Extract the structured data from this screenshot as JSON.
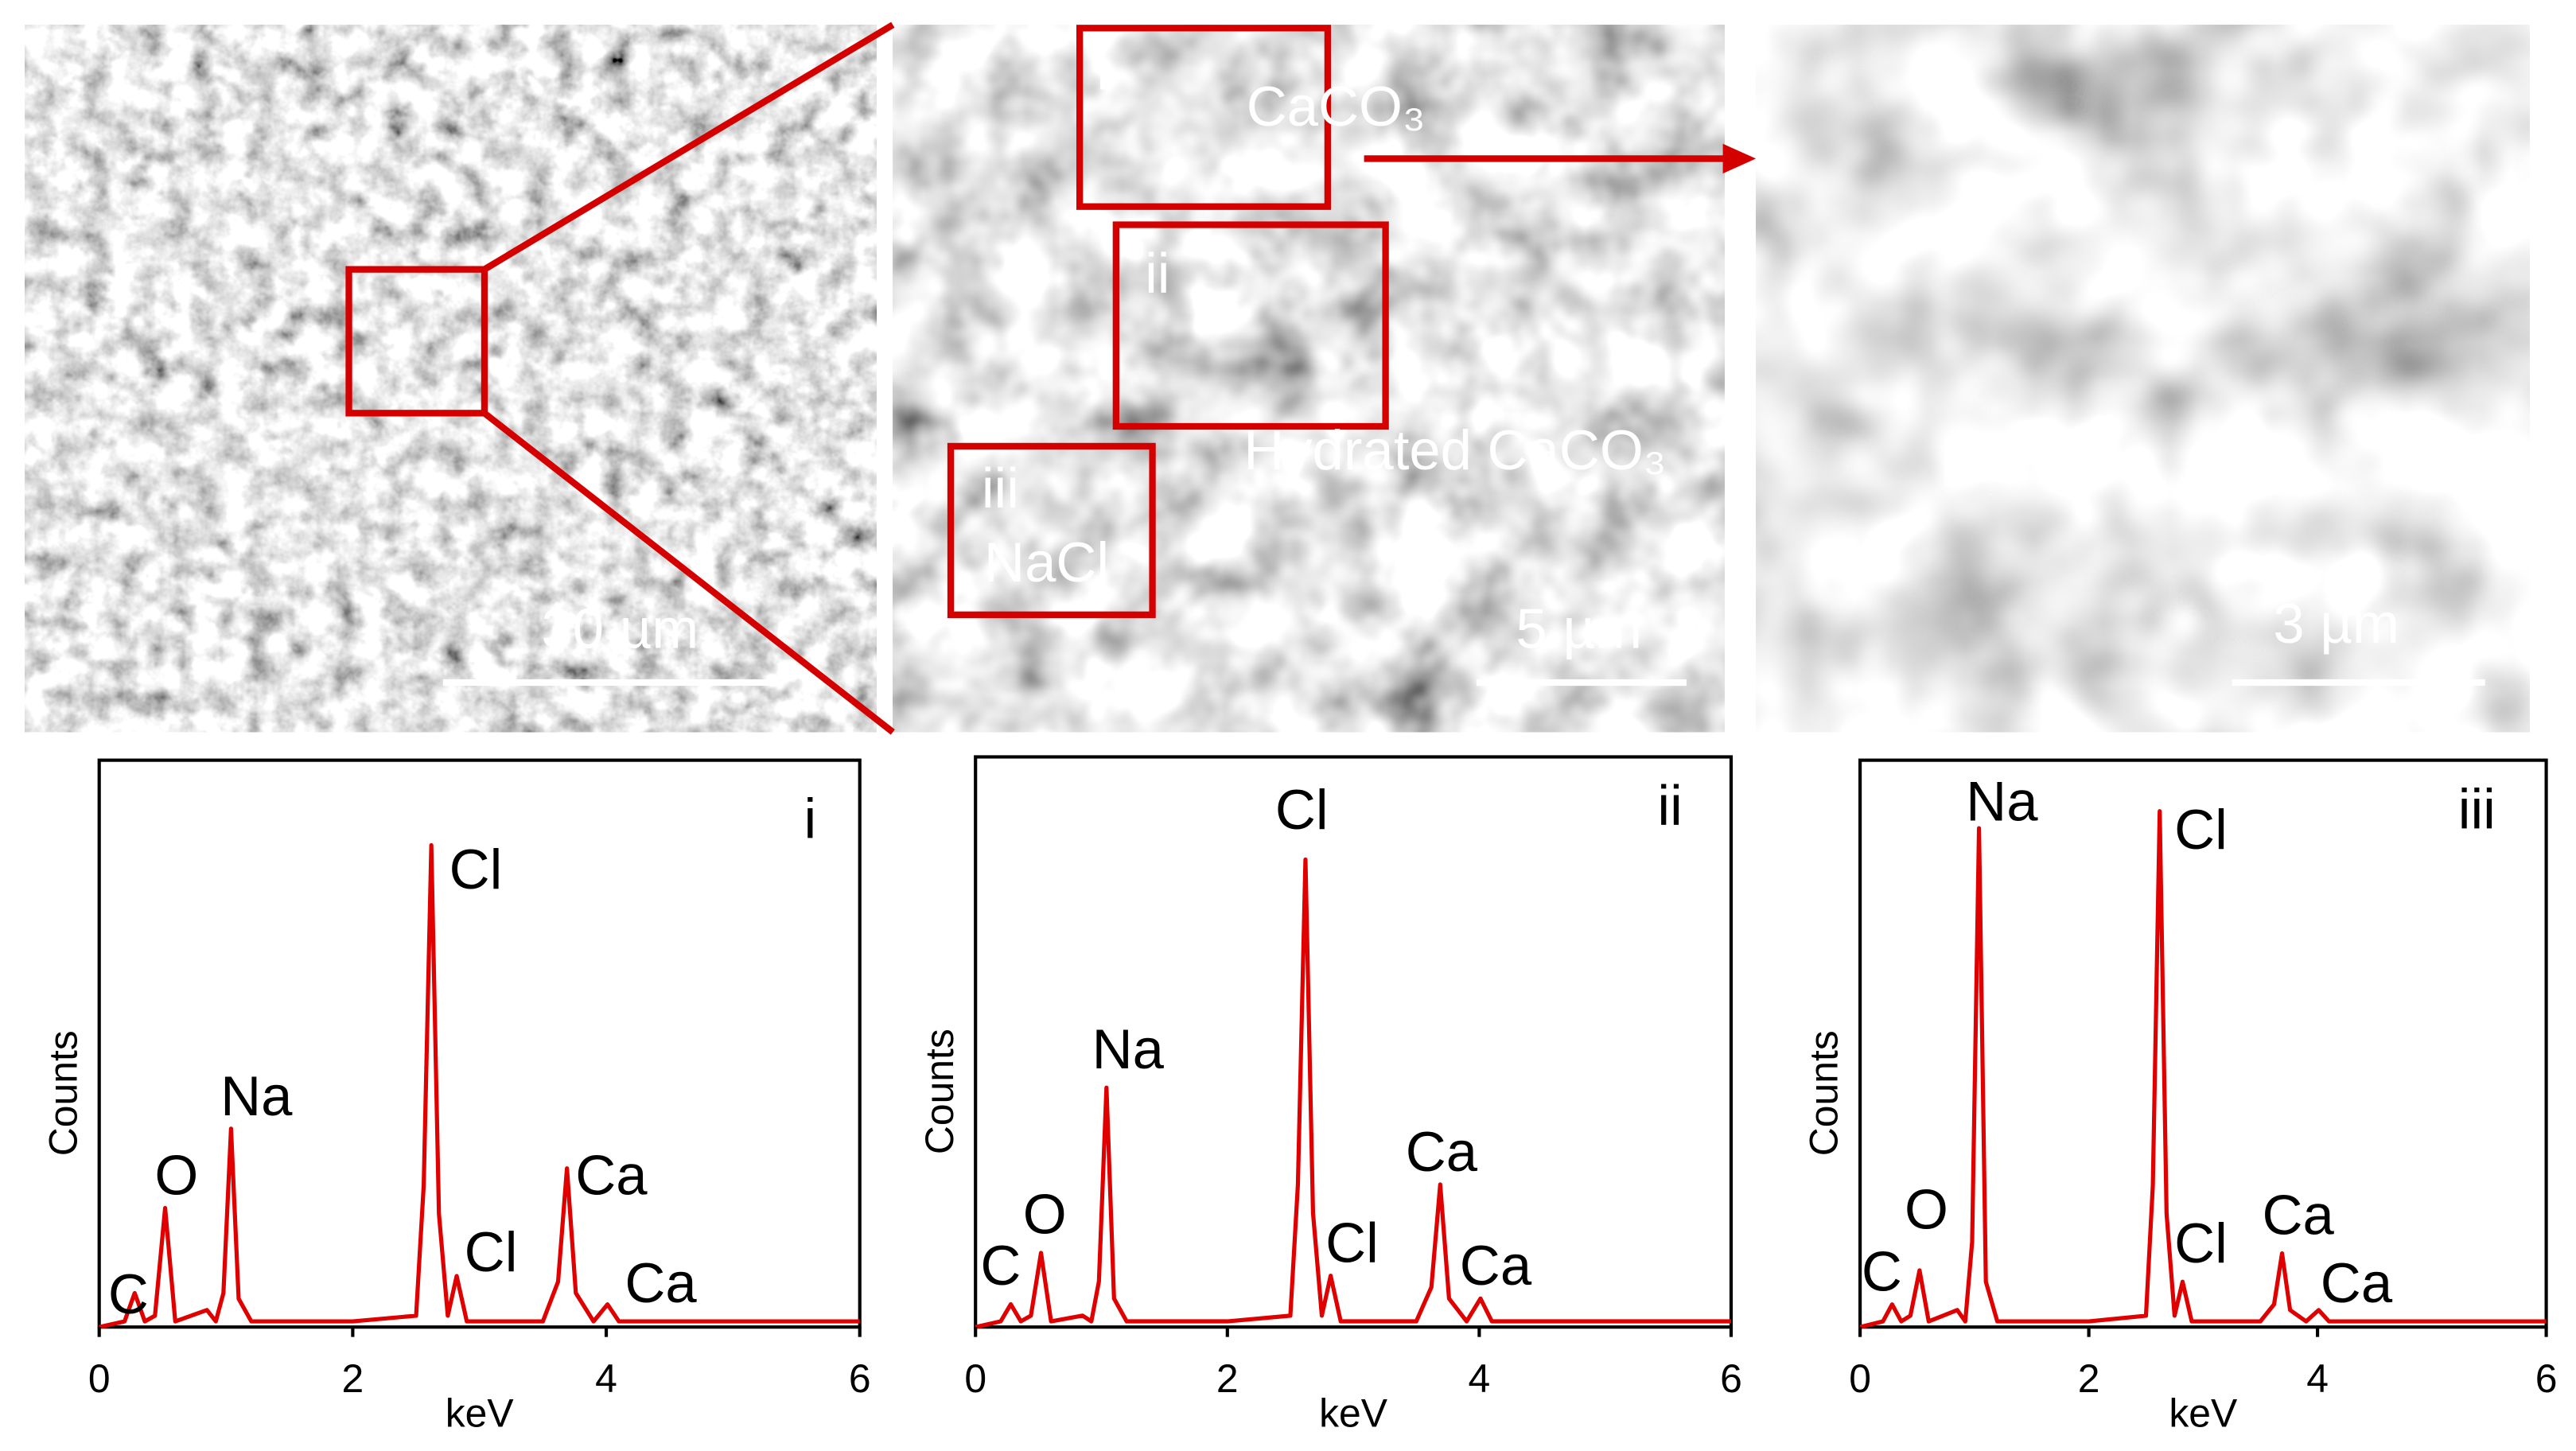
{
  "sem": {
    "scale_bars": [
      "30 µm",
      "5 µm",
      "3 µm"
    ],
    "region_labels": [
      "i",
      "ii",
      "iii"
    ],
    "phases": [
      "CaCO₃",
      "Hydrated CaCO₃",
      "NaCl"
    ]
  },
  "chart_data": [
    {
      "type": "line",
      "panel_label": "i",
      "xlabel": "keV",
      "ylabel": "Counts",
      "color": "#e00000",
      "xlim": [
        0,
        6
      ],
      "xticks": [
        0,
        2,
        4,
        6
      ],
      "ylim": [
        0,
        100
      ],
      "x": [
        0,
        0.2,
        0.28,
        0.36,
        0.44,
        0.52,
        0.6,
        0.85,
        0.92,
        0.98,
        1.04,
        1.1,
        1.2,
        2.0,
        2.5,
        2.56,
        2.62,
        2.68,
        2.75,
        2.82,
        2.9,
        3.5,
        3.62,
        3.69,
        3.76,
        3.9,
        4.01,
        4.1,
        6
      ],
      "values": [
        0,
        1,
        6,
        1,
        2,
        21,
        1,
        3,
        1,
        6,
        35,
        5,
        1,
        1,
        2,
        25,
        85,
        20,
        2,
        9,
        1,
        1,
        8,
        28,
        6,
        1,
        4,
        1,
        1
      ],
      "annotations": [
        "C",
        "O",
        "Na",
        "Cl",
        "Cl",
        "Ca",
        "Ca"
      ]
    },
    {
      "type": "line",
      "panel_label": "ii",
      "xlabel": "keV",
      "ylabel": "Counts",
      "color": "#e00000",
      "xlim": [
        0,
        6
      ],
      "xticks": [
        0,
        2,
        4,
        6
      ],
      "ylim": [
        0,
        100
      ],
      "x": [
        0,
        0.2,
        0.28,
        0.36,
        0.44,
        0.52,
        0.6,
        0.85,
        0.92,
        0.98,
        1.04,
        1.1,
        1.2,
        2.0,
        2.5,
        2.56,
        2.62,
        2.68,
        2.75,
        2.82,
        2.9,
        3.5,
        3.62,
        3.69,
        3.76,
        3.9,
        4.01,
        4.1,
        6
      ],
      "values": [
        0,
        1,
        4,
        1,
        2,
        13,
        1,
        2,
        1,
        8,
        42,
        5,
        1,
        1,
        2,
        25,
        82,
        20,
        2,
        9,
        1,
        1,
        7,
        25,
        5,
        1,
        5,
        1,
        1
      ],
      "annotations": [
        "C",
        "O",
        "Na",
        "Cl",
        "Cl",
        "Ca",
        "Ca"
      ]
    },
    {
      "type": "line",
      "panel_label": "iii",
      "xlabel": "keV",
      "ylabel": "Counts",
      "color": "#e00000",
      "xlim": [
        0,
        6
      ],
      "xticks": [
        0,
        2,
        4,
        6
      ],
      "ylim": [
        0,
        100
      ],
      "x": [
        0,
        0.2,
        0.28,
        0.36,
        0.44,
        0.52,
        0.6,
        0.85,
        0.92,
        0.98,
        1.04,
        1.1,
        1.2,
        2.0,
        2.5,
        2.56,
        2.62,
        2.68,
        2.75,
        2.82,
        2.9,
        3.5,
        3.62,
        3.69,
        3.76,
        3.9,
        4.01,
        4.1,
        6
      ],
      "values": [
        0,
        1,
        4,
        1,
        2,
        10,
        1,
        3,
        1,
        15,
        88,
        8,
        1,
        1,
        2,
        25,
        91,
        20,
        2,
        8,
        1,
        1,
        4,
        13,
        3,
        1,
        3,
        1,
        1
      ],
      "annotations": [
        "C",
        "O",
        "Na",
        "Cl",
        "Cl",
        "Ca",
        "Ca"
      ]
    }
  ]
}
